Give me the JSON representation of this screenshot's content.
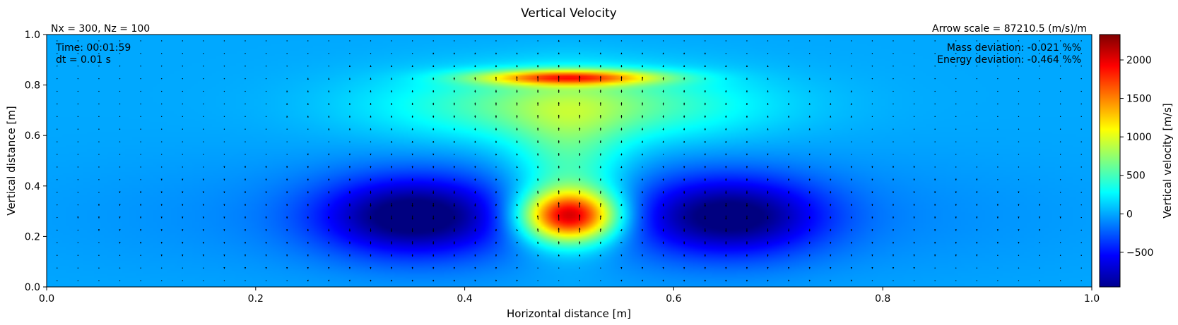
{
  "chart_data": {
    "type": "heatmap",
    "title": "Vertical Velocity",
    "xlabel": "Horizontal distance [m]",
    "ylabel": "Vertical distance [m]",
    "xlim": [
      0.0,
      1.0
    ],
    "ylim": [
      0.0,
      1.0
    ],
    "xticks": [
      "0.0",
      "0.2",
      "0.4",
      "0.6",
      "0.8",
      "1.0"
    ],
    "yticks": [
      "0.0",
      "0.2",
      "0.4",
      "0.6",
      "0.8",
      "1.0"
    ],
    "colorbar": {
      "label": "Vertical velocity [m/s]",
      "range": [
        -950,
        2330
      ],
      "ticks": [
        "−500",
        "0",
        "500",
        "1000",
        "1500",
        "2000"
      ],
      "tick_values": [
        -500,
        0,
        500,
        1000,
        1500,
        2000
      ],
      "colormap": "jet"
    },
    "annotations": {
      "grid": "Nx = 300, Nz = 100",
      "arrow_scale": "Arrow scale = 87210.5 (m/s)/m",
      "time": "Time: 00:01:59",
      "dt": "dt = 0.01 s",
      "mass_deviation": "Mass deviation: -0.021 %%",
      "energy_deviation": "Energy deviation: -0.464 %%"
    },
    "field_features": [
      {
        "feature": "background",
        "value": 0
      },
      {
        "feature": "updraft core",
        "x": 0.5,
        "y": 0.28,
        "value": 2000
      },
      {
        "feature": "cap band",
        "x": 0.5,
        "y": 0.83,
        "value": 1500
      },
      {
        "feature": "left downdraft",
        "x": 0.35,
        "y": 0.28,
        "value": -900
      },
      {
        "feature": "right downdraft",
        "x": 0.65,
        "y": 0.28,
        "value": -850
      }
    ],
    "arrows": "quiver field of flow vectors over the domain"
  }
}
